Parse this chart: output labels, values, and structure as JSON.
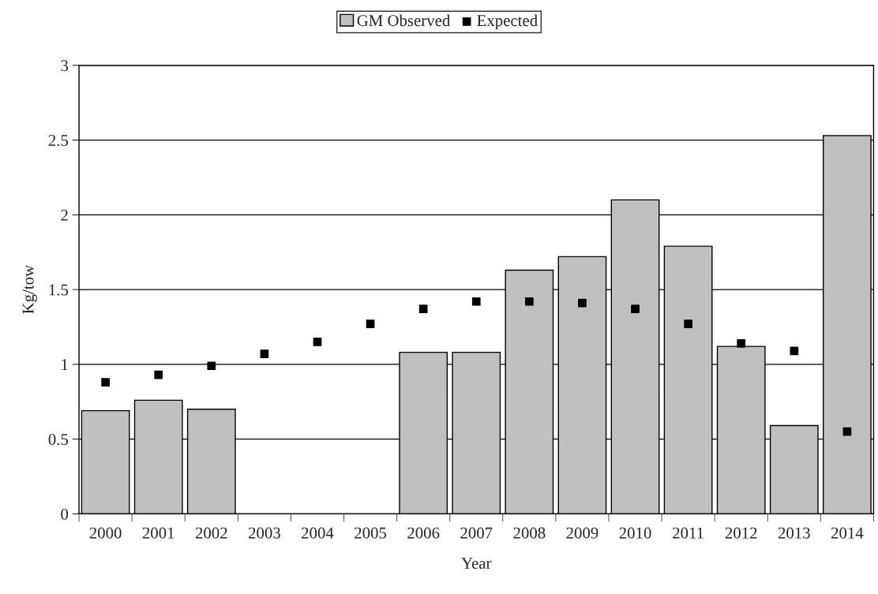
{
  "chart_data": {
    "type": "bar",
    "xlabel": "Year",
    "ylabel": "Kg/tow",
    "categories": [
      "2000",
      "2001",
      "2002",
      "2003",
      "2004",
      "2005",
      "2006",
      "2007",
      "2008",
      "2009",
      "2010",
      "2011",
      "2012",
      "2013",
      "2014"
    ],
    "series": [
      {
        "name": "GM Observed",
        "color": "#c0c0c0",
        "values": [
          0.69,
          0.76,
          0.7,
          null,
          null,
          null,
          1.08,
          1.08,
          1.63,
          1.72,
          2.1,
          1.79,
          1.12,
          0.59,
          2.53
        ]
      },
      {
        "name": "Expected",
        "type": "scatter",
        "color": "#000000",
        "marker": "square",
        "values": [
          0.88,
          0.93,
          0.99,
          1.07,
          1.15,
          1.27,
          1.37,
          1.42,
          1.42,
          1.41,
          1.37,
          1.27,
          1.14,
          1.09,
          0.55
        ]
      }
    ],
    "ylim": [
      0,
      3
    ],
    "yticks": [
      0,
      0.5,
      1,
      1.5,
      2,
      2.5,
      3
    ],
    "grid": "y",
    "legend": "top"
  }
}
